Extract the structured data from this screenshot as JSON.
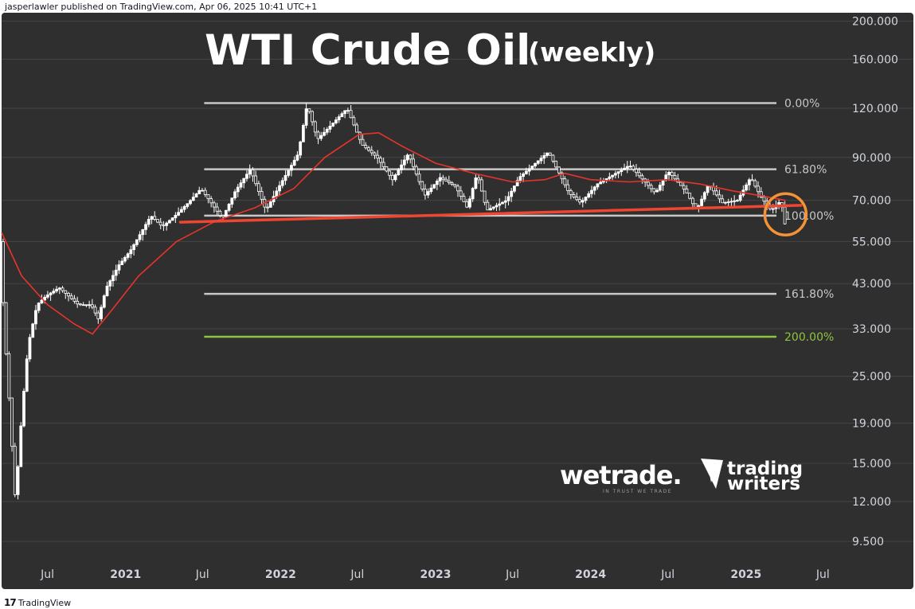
{
  "header": {
    "published": "jasperlawler published on TradingView.com, Apr 06, 2025 10:41 UTC+1"
  },
  "footer": {
    "brand": "TradingView",
    "logo_glyph": "17"
  },
  "title": {
    "main": "WTI Crude Oil",
    "sub": "(weekly)"
  },
  "logos": {
    "wetrade": "wetrade.",
    "wetrade_tagline": "IN TRUST WE TRADE",
    "trading": "trading",
    "writers": "writers"
  },
  "colors": {
    "background": "#2f2f2f",
    "grid": "#454545",
    "candle": "#ffffff",
    "ma": "#e8332a",
    "trendline": "#ef4632",
    "fib": "#c8c8c8",
    "fib_200": "#8cc63e",
    "circle": "#f39237"
  },
  "chart_data": {
    "type": "line",
    "y_scale": "log",
    "ylim": [
      8.5,
      210
    ],
    "xlim": [
      "2020-03-15",
      "2025-08-20"
    ],
    "y_ticks": [
      "200.000",
      "160.000",
      "120.000",
      "90.000",
      "70.000",
      "55.000",
      "43.000",
      "33.000",
      "25.000",
      "19.000",
      "15.000",
      "12.000",
      "9.500"
    ],
    "x_ticks": [
      {
        "label": "Jul",
        "date": "2020-07-01",
        "bold": false
      },
      {
        "label": "2021",
        "date": "2021-01-01",
        "bold": true
      },
      {
        "label": "Jul",
        "date": "2021-07-01",
        "bold": false
      },
      {
        "label": "2022",
        "date": "2022-01-01",
        "bold": true
      },
      {
        "label": "Jul",
        "date": "2022-07-01",
        "bold": false
      },
      {
        "label": "2023",
        "date": "2023-01-01",
        "bold": true
      },
      {
        "label": "Jul",
        "date": "2023-07-01",
        "bold": false
      },
      {
        "label": "2024",
        "date": "2024-01-01",
        "bold": true
      },
      {
        "label": "Jul",
        "date": "2024-07-01",
        "bold": false
      },
      {
        "label": "2025",
        "date": "2025-01-01",
        "bold": true
      },
      {
        "label": "Jul",
        "date": "2025-07-01",
        "bold": false
      }
    ],
    "price_path": [
      [
        "2020-03-15",
        55
      ],
      [
        "2020-03-25",
        33
      ],
      [
        "2020-04-05",
        22
      ],
      [
        "2020-04-20",
        12
      ],
      [
        "2020-05-05",
        20
      ],
      [
        "2020-05-20",
        30
      ],
      [
        "2020-06-10",
        38
      ],
      [
        "2020-07-01",
        40
      ],
      [
        "2020-08-01",
        42
      ],
      [
        "2020-09-15",
        38
      ],
      [
        "2020-10-15",
        38
      ],
      [
        "2020-11-01",
        35
      ],
      [
        "2020-11-20",
        42
      ],
      [
        "2020-12-20",
        48
      ],
      [
        "2021-01-15",
        52
      ],
      [
        "2021-02-10",
        58
      ],
      [
        "2021-03-05",
        64
      ],
      [
        "2021-04-01",
        60
      ],
      [
        "2021-05-01",
        64
      ],
      [
        "2021-06-01",
        69
      ],
      [
        "2021-07-01",
        75
      ],
      [
        "2021-08-20",
        63
      ],
      [
        "2021-09-20",
        74
      ],
      [
        "2021-10-25",
        84
      ],
      [
        "2021-12-01",
        66
      ],
      [
        "2022-01-01",
        76
      ],
      [
        "2022-02-15",
        92
      ],
      [
        "2022-03-08",
        123
      ],
      [
        "2022-04-01",
        100
      ],
      [
        "2022-06-10",
        120
      ],
      [
        "2022-07-15",
        97
      ],
      [
        "2022-08-20",
        90
      ],
      [
        "2022-09-25",
        79
      ],
      [
        "2022-11-01",
        92
      ],
      [
        "2022-12-10",
        72
      ],
      [
        "2023-01-15",
        80
      ],
      [
        "2023-02-20",
        76
      ],
      [
        "2023-03-20",
        67
      ],
      [
        "2023-04-12",
        82
      ],
      [
        "2023-05-05",
        66
      ],
      [
        "2023-06-20",
        70
      ],
      [
        "2023-07-20",
        80
      ],
      [
        "2023-09-27",
        93
      ],
      [
        "2023-11-15",
        73
      ],
      [
        "2023-12-12",
        69
      ],
      [
        "2024-01-20",
        77
      ],
      [
        "2024-04-05",
        86
      ],
      [
        "2024-06-05",
        73
      ],
      [
        "2024-07-05",
        83
      ],
      [
        "2024-08-15",
        74
      ],
      [
        "2024-09-10",
        66
      ],
      [
        "2024-10-08",
        77
      ],
      [
        "2024-11-10",
        69
      ],
      [
        "2024-12-15",
        70
      ],
      [
        "2025-01-15",
        80
      ],
      [
        "2025-02-10",
        71
      ],
      [
        "2025-03-05",
        66
      ],
      [
        "2025-03-28",
        70
      ],
      [
        "2025-04-04",
        61
      ]
    ],
    "moving_average": [
      [
        "2020-03-15",
        58
      ],
      [
        "2020-05-01",
        45
      ],
      [
        "2020-07-01",
        38
      ],
      [
        "2020-09-01",
        34
      ],
      [
        "2020-10-15",
        32
      ],
      [
        "2020-12-01",
        37
      ],
      [
        "2021-02-01",
        45
      ],
      [
        "2021-05-01",
        55
      ],
      [
        "2021-08-01",
        62
      ],
      [
        "2021-11-01",
        67
      ],
      [
        "2022-02-01",
        75
      ],
      [
        "2022-04-15",
        90
      ],
      [
        "2022-07-05",
        103
      ],
      [
        "2022-08-20",
        104
      ],
      [
        "2022-10-15",
        96
      ],
      [
        "2023-01-01",
        87
      ],
      [
        "2023-04-01",
        82
      ],
      [
        "2023-07-01",
        78
      ],
      [
        "2023-09-15",
        79
      ],
      [
        "2023-11-01",
        82
      ],
      [
        "2024-01-01",
        79
      ],
      [
        "2024-04-01",
        78
      ],
      [
        "2024-07-01",
        79
      ],
      [
        "2024-09-15",
        77
      ],
      [
        "2024-12-01",
        74
      ],
      [
        "2025-02-01",
        72
      ],
      [
        "2025-04-04",
        70
      ]
    ],
    "trendline": {
      "from": [
        "2021-05-10",
        61.6
      ],
      "to": [
        "2025-05-10",
        68.0
      ]
    },
    "fib_levels": [
      {
        "label": "0.00%",
        "value": 123.7,
        "color": "#c8c8c8"
      },
      {
        "label": "61.80%",
        "value": 84.0,
        "color": "#c8c8c8"
      },
      {
        "label": "100.00%",
        "value": 64.0,
        "color": "#c8c8c8"
      },
      {
        "label": "161.80%",
        "value": 40.5,
        "color": "#c8c8c8"
      },
      {
        "label": "200.00%",
        "value": 31.5,
        "color": "#8cc63e"
      }
    ],
    "fib_start_date": "2021-07-05",
    "highlight": {
      "date": "2025-04-04",
      "value": 64.5
    }
  }
}
